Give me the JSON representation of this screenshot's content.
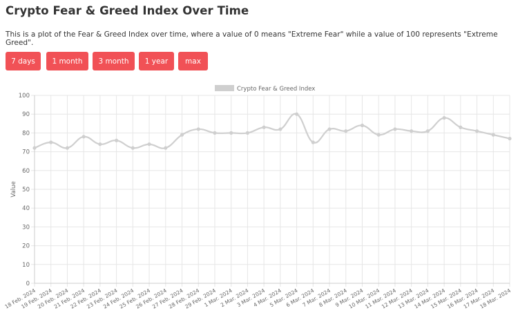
{
  "page": {
    "title": "Crypto Fear & Greed Index Over Time",
    "description": "This is a plot of the Fear & Greed Index over time, where a value of 0 means \"Extreme Fear\" while a value of 100 represents \"Extreme Greed\"."
  },
  "range_buttons": {
    "b7d": "7 days",
    "b1m": "1 month",
    "b3m": "3 month",
    "b1y": "1 year",
    "bmax": "max"
  },
  "colors": {
    "button_bg": "#f15156",
    "line": "#cfcfcf",
    "grid": "#e6e6e6"
  },
  "chart_data": {
    "type": "line",
    "ylabel": "Value",
    "legend_position": "top-center",
    "grid": true,
    "ylim": [
      0,
      100
    ],
    "yticks": [
      0,
      10,
      20,
      30,
      40,
      50,
      60,
      70,
      80,
      90,
      100
    ],
    "series": [
      {
        "name": "Crypto Fear & Greed Index",
        "x": [
          "18 Feb. 2024",
          "19 Feb. 2024",
          "20 Feb. 2024",
          "21 Feb. 2024",
          "22 Feb. 2024",
          "23 Feb. 2024",
          "24 Feb. 2024",
          "25 Feb. 2024",
          "26 Feb. 2024",
          "27 Feb. 2024",
          "28 Feb. 2024",
          "29 Feb. 2024",
          "1 Mar. 2024",
          "2 Mar. 2024",
          "3 Mar. 2024",
          "4 Mar. 2024",
          "5 Mar. 2024",
          "6 Mar. 2024",
          "7 Mar. 2024",
          "8 Mar. 2024",
          "9 Mar. 2024",
          "10 Mar. 2024",
          "11 Mar. 2024",
          "12 Mar. 2024",
          "13 Mar. 2024",
          "14 Mar. 2024",
          "15 Mar. 2024",
          "16 Mar. 2024",
          "17 Mar. 2024",
          "18 Mar. 2024"
        ],
        "values": [
          72,
          75,
          72,
          78,
          74,
          76,
          72,
          74,
          72,
          79,
          82,
          80,
          80,
          80,
          83,
          82,
          90,
          75,
          82,
          81,
          84,
          79,
          82,
          81,
          81,
          88,
          83,
          81,
          79,
          77
        ]
      }
    ]
  }
}
